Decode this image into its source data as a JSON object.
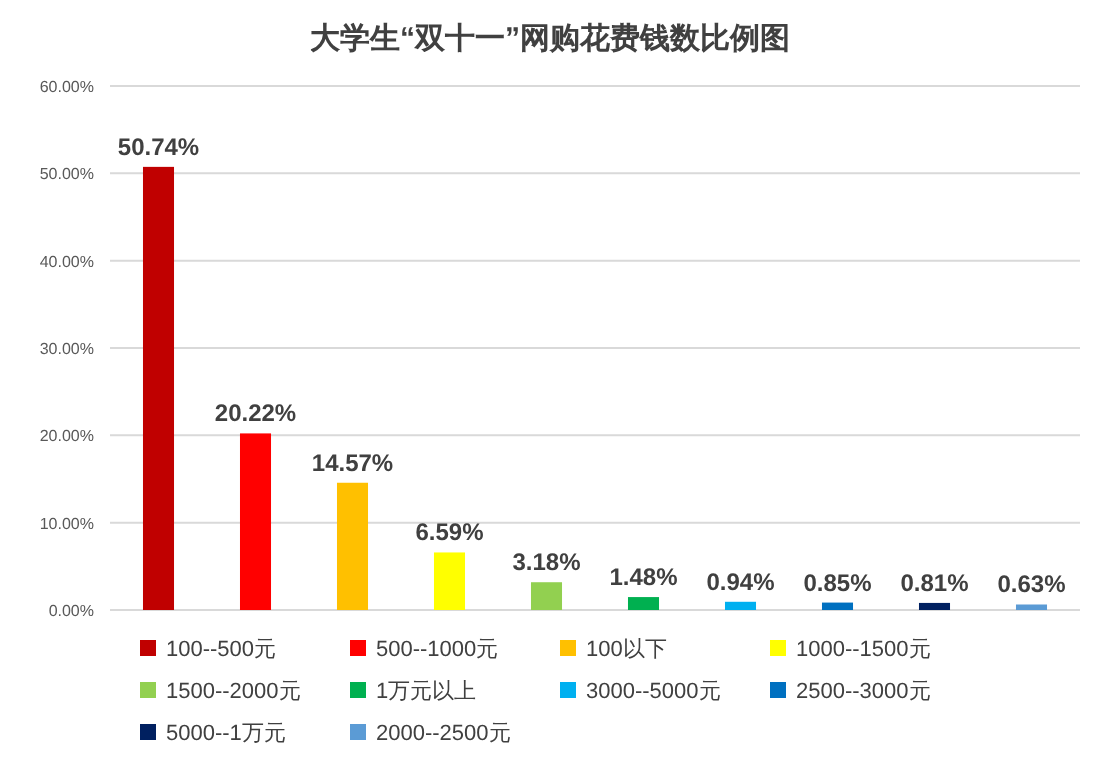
{
  "chart_data": {
    "type": "bar",
    "title": "大学生“双十一”网购花费钱数比例图",
    "categories": [
      null,
      null,
      null,
      null,
      null,
      null,
      null,
      null,
      null,
      null
    ],
    "series": [
      {
        "name": "100--500元",
        "color": "#c00000",
        "values": [
          50.74,
          null,
          null,
          null,
          null,
          null,
          null,
          null,
          null,
          null
        ],
        "value_labels": [
          "50.74%",
          null,
          null,
          null,
          null,
          null,
          null,
          null,
          null,
          null
        ]
      },
      {
        "name": "500--1000元",
        "color": "#ff0000",
        "values": [
          null,
          20.22,
          null,
          null,
          null,
          null,
          null,
          null,
          null,
          null
        ],
        "value_labels": [
          null,
          "20.22%",
          null,
          null,
          null,
          null,
          null,
          null,
          null,
          null
        ]
      },
      {
        "name": "100以下",
        "color": "#ffc000",
        "values": [
          null,
          null,
          14.57,
          null,
          null,
          null,
          null,
          null,
          null,
          null
        ],
        "value_labels": [
          null,
          null,
          "14.57%",
          null,
          null,
          null,
          null,
          null,
          null,
          null
        ]
      },
      {
        "name": "1000--1500元",
        "color": "#ffff00",
        "values": [
          null,
          null,
          null,
          6.59,
          null,
          null,
          null,
          null,
          null,
          null
        ],
        "value_labels": [
          null,
          null,
          null,
          "6.59%",
          null,
          null,
          null,
          null,
          null,
          null
        ]
      },
      {
        "name": "1500--2000元",
        "color": "#92d050",
        "values": [
          null,
          null,
          null,
          null,
          3.18,
          null,
          null,
          null,
          null,
          null
        ],
        "value_labels": [
          null,
          null,
          null,
          null,
          "3.18%",
          null,
          null,
          null,
          null,
          null
        ]
      },
      {
        "name": "1万元以上",
        "color": "#00b050",
        "values": [
          null,
          null,
          null,
          null,
          null,
          1.48,
          null,
          null,
          null,
          null
        ],
        "value_labels": [
          null,
          null,
          null,
          null,
          null,
          "1.48%",
          null,
          null,
          null,
          null
        ]
      },
      {
        "name": "3000--5000元",
        "color": "#00b0f0",
        "values": [
          null,
          null,
          null,
          null,
          null,
          null,
          0.94,
          null,
          null,
          null
        ],
        "value_labels": [
          null,
          null,
          null,
          null,
          null,
          null,
          "0.94%",
          null,
          null,
          null
        ]
      },
      {
        "name": "2500--3000元",
        "color": "#0070c0",
        "values": [
          null,
          null,
          null,
          null,
          null,
          null,
          null,
          0.85,
          null,
          null
        ],
        "value_labels": [
          null,
          null,
          null,
          null,
          null,
          null,
          null,
          "0.85%",
          null,
          null
        ]
      },
      {
        "name": "5000--1万元",
        "color": "#002060",
        "values": [
          null,
          null,
          null,
          null,
          null,
          null,
          null,
          null,
          0.81,
          null
        ],
        "value_labels": [
          null,
          null,
          null,
          null,
          null,
          null,
          null,
          null,
          "0.81%",
          null
        ]
      },
      {
        "name": "2000--2500元",
        "color": "#5b9bd5",
        "values": [
          null,
          null,
          null,
          null,
          null,
          null,
          null,
          null,
          null,
          0.63
        ],
        "value_labels": [
          null,
          null,
          null,
          null,
          null,
          null,
          null,
          null,
          null,
          "0.63%"
        ]
      }
    ],
    "ylim": [
      0,
      60
    ],
    "yticks": [
      {
        "value": 0,
        "label": "0.00%"
      },
      {
        "value": 10,
        "label": "10.00%"
      },
      {
        "value": 20,
        "label": "20.00%"
      },
      {
        "value": 30,
        "label": "30.00%"
      },
      {
        "value": 40,
        "label": "40.00%"
      },
      {
        "value": 50,
        "label": "50.00%"
      },
      {
        "value": 60,
        "label": "60.00%"
      }
    ],
    "grid": "y",
    "legend": "bottom",
    "tick_labels": "y"
  }
}
